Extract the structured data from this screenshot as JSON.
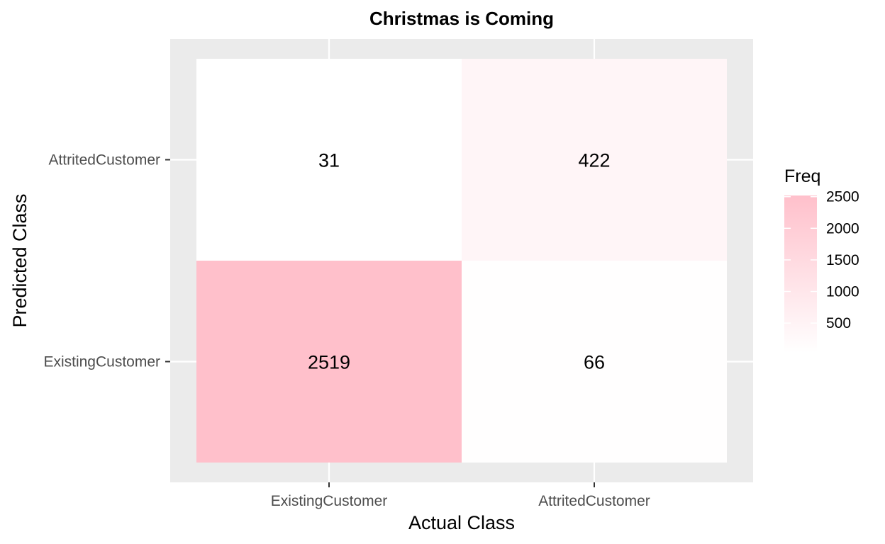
{
  "chart_data": {
    "type": "heatmap",
    "title": "Christmas is Coming",
    "xlabel": "Actual Class",
    "ylabel": "Predicted Class",
    "x_categories": [
      "ExistingCustomer",
      "AttritedCustomer"
    ],
    "y_categories": [
      "AttritedCustomer",
      "ExistingCustomer"
    ],
    "cells": [
      {
        "x": "ExistingCustomer",
        "y": "AttritedCustomer",
        "value": 31
      },
      {
        "x": "AttritedCustomer",
        "y": "AttritedCustomer",
        "value": 422
      },
      {
        "x": "ExistingCustomer",
        "y": "ExistingCustomer",
        "value": 2519
      },
      {
        "x": "AttritedCustomer",
        "y": "ExistingCustomer",
        "value": 66
      }
    ],
    "legend": {
      "title": "Freq",
      "position": "right",
      "ticks": [
        500,
        1000,
        1500,
        2000,
        2500
      ],
      "range": [
        31,
        2519
      ]
    },
    "colors": {
      "low": "#FFFFFF",
      "high": "#FFC0CB",
      "panel_background": "#EBEBEB",
      "grid": "#FFFFFF"
    },
    "grid": true
  }
}
